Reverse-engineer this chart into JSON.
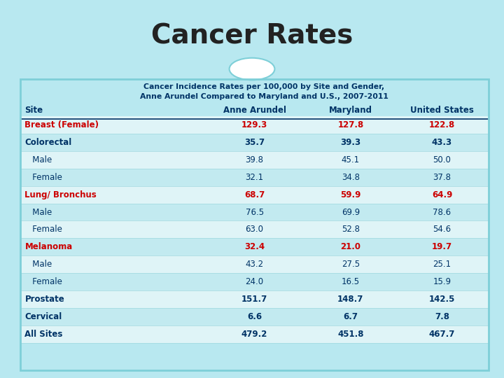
{
  "title": "Cancer Rates",
  "subtitle_line1": "Cancer Incidence Rates per 100,000 by Site and Gender,",
  "subtitle_line2": "Anne Arundel Compared to Maryland and U.S., 2007-2011",
  "columns": [
    "Site",
    "Anne Arundel",
    "Maryland",
    "United States"
  ],
  "rows": [
    {
      "site": "Breast (Female)",
      "values": [
        "129.3",
        "127.8",
        "122.8"
      ],
      "bold": true,
      "red": true,
      "indent": false
    },
    {
      "site": "Colorectal",
      "values": [
        "35.7",
        "39.3",
        "43.3"
      ],
      "bold": true,
      "red": false,
      "indent": false
    },
    {
      "site": "   Male",
      "values": [
        "39.8",
        "45.1",
        "50.0"
      ],
      "bold": false,
      "red": false,
      "indent": true
    },
    {
      "site": "   Female",
      "values": [
        "32.1",
        "34.8",
        "37.8"
      ],
      "bold": false,
      "red": false,
      "indent": true
    },
    {
      "site": "Lung/ Bronchus",
      "values": [
        "68.7",
        "59.9",
        "64.9"
      ],
      "bold": true,
      "red": true,
      "indent": false
    },
    {
      "site": "   Male",
      "values": [
        "76.5",
        "69.9",
        "78.6"
      ],
      "bold": false,
      "red": false,
      "indent": true
    },
    {
      "site": "   Female",
      "values": [
        "63.0",
        "52.8",
        "54.6"
      ],
      "bold": false,
      "red": false,
      "indent": true
    },
    {
      "site": "Melanoma",
      "values": [
        "32.4",
        "21.0",
        "19.7"
      ],
      "bold": true,
      "red": true,
      "indent": false
    },
    {
      "site": "   Male",
      "values": [
        "43.2",
        "27.5",
        "25.1"
      ],
      "bold": false,
      "red": false,
      "indent": true
    },
    {
      "site": "   Female",
      "values": [
        "24.0",
        "16.5",
        "15.9"
      ],
      "bold": false,
      "red": false,
      "indent": true
    },
    {
      "site": "Prostate",
      "values": [
        "151.7",
        "148.7",
        "142.5"
      ],
      "bold": true,
      "red": false,
      "indent": false
    },
    {
      "site": "Cervical",
      "values": [
        "6.6",
        "6.7",
        "7.8"
      ],
      "bold": true,
      "red": false,
      "indent": false
    },
    {
      "site": "All Sites",
      "values": [
        "479.2",
        "451.8",
        "467.7"
      ],
      "bold": true,
      "red": false,
      "indent": false
    }
  ],
  "header_color": "#003366",
  "red_color": "#cc0000",
  "title_bg": "#00e5ff",
  "table_bg": "#dff4f7",
  "row_alt_bg": "#c2eaf0",
  "outer_bg": "#b8e8f0",
  "border_color": "#7ecfd8",
  "sep_color": "#a0d8e0"
}
